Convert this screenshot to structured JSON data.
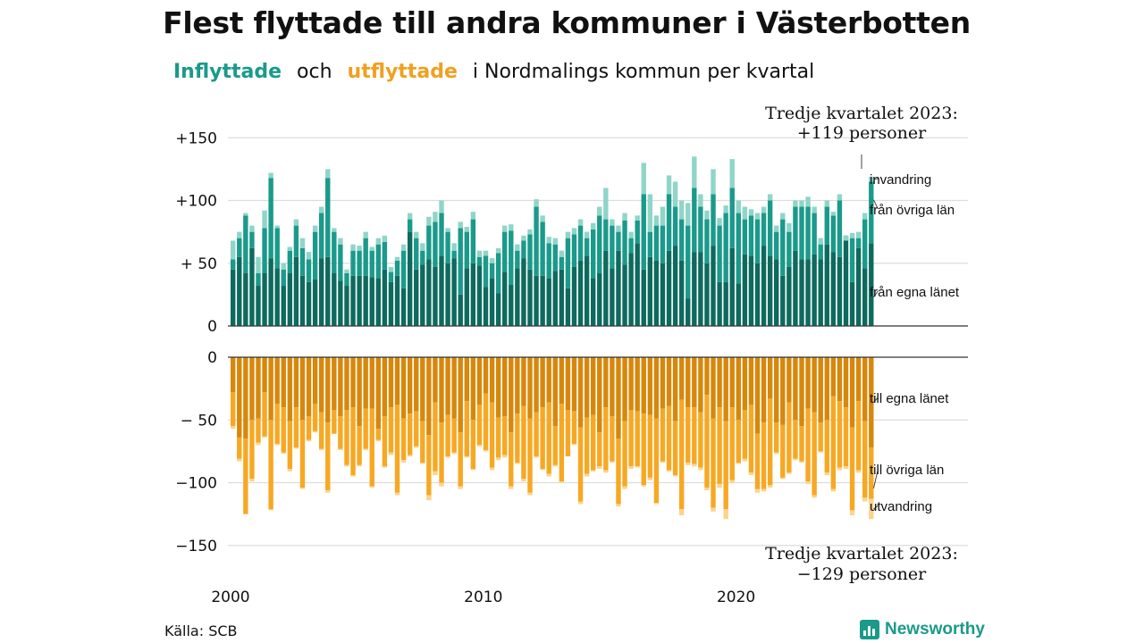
{
  "title": "Flest flyttade till andra kommuner i Västerbotten",
  "subtitle": {
    "inflow_word": "Inflyttade",
    "and_word": "och",
    "outflow_word": "utflyttade",
    "rest": "i Nordmalings kommun per kvartal"
  },
  "source": "Källa: SCB",
  "brand": {
    "name": "Newsworthy",
    "icon": "bar-chart-logo-icon"
  },
  "colors": {
    "in_own": "#0e6a5e",
    "in_other": "#1a9a8a",
    "in_immigration": "#8fd5c8",
    "out_own": "#d7880b",
    "out_other": "#f7a823",
    "out_emigration": "#fbd48d",
    "grid": "#dddddd",
    "axis": "#333333"
  },
  "chart_data": {
    "type": "bar",
    "stacked": true,
    "ylim": [
      -150,
      150
    ],
    "y_ticks": [
      {
        "value": 150,
        "label": "+150"
      },
      {
        "value": 100,
        "label": "+100"
      },
      {
        "value": 50,
        "label": "+ 50"
      },
      {
        "value": 0,
        "label": "0"
      },
      {
        "value": -50,
        "label": "− 50"
      },
      {
        "value": -100,
        "label": "−100"
      },
      {
        "value": -150,
        "label": "−150"
      }
    ],
    "x_start": "2000 Q1",
    "x_end": "2023 Q3",
    "x_ticks": [
      {
        "year": 2000,
        "label": "2000"
      },
      {
        "year": 2010,
        "label": "2010"
      },
      {
        "year": 2020,
        "label": "2020"
      }
    ],
    "grid": true,
    "in_labels": [
      "invandring",
      "från övriga län",
      "från egna länet"
    ],
    "out_labels": [
      "till egna länet",
      "till övriga län",
      "utvandring"
    ],
    "callout_top": [
      "Tredje kvartalet 2023:",
      "+119 personer"
    ],
    "callout_bottom": [
      "Tredje kvartalet 2023:",
      "−129 personer"
    ],
    "in_total": [
      68,
      75,
      90,
      80,
      55,
      92,
      122,
      80,
      50,
      63,
      85,
      70,
      59,
      80,
      95,
      125,
      78,
      70,
      45,
      65,
      64,
      75,
      63,
      70,
      72,
      47,
      55,
      65,
      90,
      75,
      66,
      87,
      91,
      100,
      78,
      66,
      83,
      79,
      91,
      60,
      60,
      54,
      62,
      80,
      81,
      65,
      72,
      77,
      101,
      88,
      71,
      70,
      60,
      75,
      78,
      85,
      75,
      82,
      95,
      110,
      85,
      80,
      90,
      75,
      88,
      130,
      105,
      88,
      95,
      120,
      115,
      100,
      98,
      135,
      105,
      92,
      125,
      86,
      96,
      133,
      100,
      95,
      93,
      90,
      95,
      105,
      80,
      90,
      82,
      100,
      100,
      103,
      95,
      70,
      100,
      91,
      105,
      72,
      74,
      75,
      90,
      119
    ],
    "in_other_cum": [
      53,
      70,
      88,
      75,
      42,
      78,
      118,
      78,
      45,
      60,
      80,
      62,
      53,
      75,
      90,
      118,
      75,
      65,
      42,
      60,
      60,
      70,
      60,
      65,
      67,
      43,
      52,
      60,
      85,
      70,
      60,
      80,
      83,
      90,
      75,
      60,
      78,
      75,
      85,
      55,
      56,
      50,
      58,
      75,
      76,
      60,
      68,
      73,
      95,
      83,
      66,
      65,
      55,
      70,
      73,
      80,
      70,
      77,
      88,
      85,
      80,
      75,
      84,
      70,
      84,
      105,
      75,
      80,
      80,
      105,
      95,
      85,
      80,
      110,
      95,
      85,
      105,
      80,
      90,
      110,
      90,
      85,
      88,
      85,
      90,
      100,
      75,
      85,
      75,
      95,
      95,
      95,
      90,
      65,
      95,
      88,
      100,
      68,
      70,
      70,
      85,
      115
    ],
    "in_own": [
      45,
      55,
      42,
      62,
      32,
      42,
      54,
      46,
      32,
      42,
      55,
      40,
      35,
      37,
      54,
      55,
      42,
      36,
      32,
      40,
      40,
      40,
      39,
      38,
      45,
      35,
      40,
      30,
      75,
      45,
      49,
      53,
      47,
      56,
      50,
      54,
      25,
      46,
      50,
      48,
      31,
      38,
      26,
      43,
      33,
      46,
      54,
      45,
      40,
      40,
      38,
      44,
      45,
      30,
      47,
      52,
      56,
      38,
      42,
      60,
      46,
      60,
      49,
      58,
      66,
      45,
      55,
      52,
      50,
      60,
      64,
      52,
      22,
      59,
      59,
      50,
      64,
      35,
      35,
      62,
      34,
      57,
      56,
      50,
      64,
      56,
      53,
      40,
      47,
      60,
      53,
      53,
      57,
      53,
      65,
      59,
      55,
      72,
      35,
      62,
      46,
      66
    ],
    "out_total": [
      57,
      83,
      125,
      99,
      70,
      64,
      122,
      70,
      77,
      91,
      73,
      105,
      67,
      60,
      74,
      108,
      61,
      74,
      87,
      95,
      87,
      74,
      104,
      67,
      88,
      78,
      110,
      84,
      79,
      72,
      85,
      114,
      94,
      103,
      80,
      77,
      105,
      80,
      90,
      71,
      75,
      90,
      82,
      80,
      105,
      85,
      99,
      110,
      80,
      90,
      95,
      87,
      100,
      79,
      70,
      117,
      95,
      91,
      89,
      92,
      84,
      119,
      105,
      89,
      88,
      103,
      98,
      117,
      84,
      91,
      95,
      126,
      86,
      87,
      90,
      106,
      123,
      104,
      129,
      100,
      85,
      83,
      94,
      108,
      107,
      104,
      77,
      97,
      93,
      82,
      84,
      101,
      112,
      76,
      94,
      107,
      90,
      89,
      126,
      92,
      115,
      129
    ],
    "out_other_cum": [
      55,
      81,
      125,
      97,
      68,
      63,
      121,
      69,
      76,
      89,
      72,
      104,
      66,
      59,
      73,
      106,
      61,
      73,
      86,
      94,
      86,
      73,
      103,
      66,
      87,
      76,
      108,
      82,
      78,
      71,
      84,
      110,
      91,
      100,
      79,
      76,
      103,
      79,
      89,
      70,
      74,
      88,
      80,
      78,
      103,
      84,
      97,
      108,
      79,
      89,
      93,
      86,
      99,
      79,
      69,
      115,
      93,
      90,
      87,
      90,
      83,
      117,
      103,
      87,
      87,
      102,
      96,
      116,
      83,
      90,
      94,
      121,
      84,
      85,
      88,
      104,
      120,
      101,
      121,
      98,
      84,
      81,
      92,
      105,
      105,
      102,
      76,
      96,
      92,
      81,
      83,
      99,
      110,
      75,
      92,
      105,
      88,
      87,
      122,
      90,
      112,
      113
    ],
    "out_own": [
      28,
      64,
      65,
      50,
      49,
      28,
      50,
      37,
      40,
      51,
      40,
      50,
      47,
      37,
      44,
      52,
      42,
      47,
      42,
      40,
      55,
      41,
      41,
      57,
      47,
      40,
      38,
      49,
      45,
      43,
      51,
      62,
      36,
      52,
      46,
      49,
      60,
      35,
      50,
      38,
      29,
      36,
      48,
      47,
      60,
      45,
      39,
      49,
      44,
      40,
      36,
      55,
      37,
      42,
      43,
      56,
      48,
      46,
      60,
      40,
      47,
      65,
      51,
      42,
      43,
      45,
      46,
      49,
      41,
      39,
      51,
      34,
      40,
      40,
      44,
      30,
      49,
      40,
      51,
      40,
      50,
      42,
      38,
      61,
      52,
      33,
      52,
      54,
      36,
      50,
      55,
      41,
      44,
      52,
      50,
      31,
      35,
      40,
      56,
      35,
      51,
      72
    ]
  }
}
